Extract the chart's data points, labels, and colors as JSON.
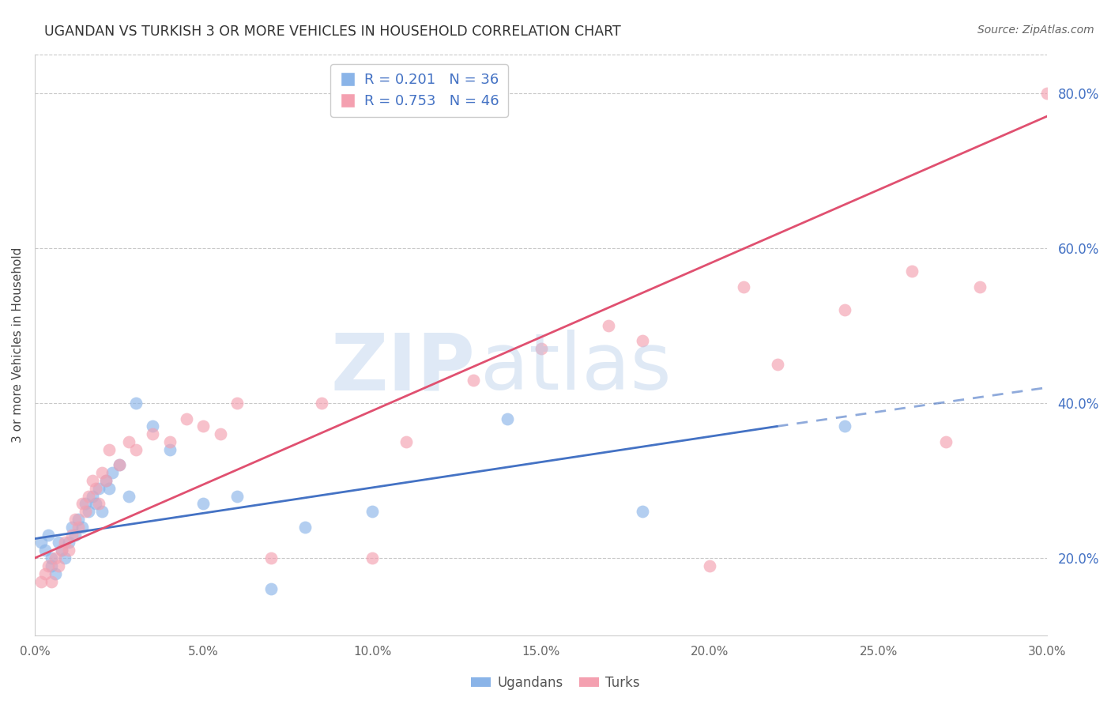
{
  "title": "UGANDAN VS TURKISH 3 OR MORE VEHICLES IN HOUSEHOLD CORRELATION CHART",
  "source": "Source: ZipAtlas.com",
  "ylabel": "3 or more Vehicles in Household",
  "xlim": [
    0.0,
    30.0
  ],
  "ylim": [
    10.0,
    85.0
  ],
  "x_ticks": [
    0.0,
    5.0,
    10.0,
    15.0,
    20.0,
    25.0,
    30.0
  ],
  "y_ticks_right": [
    20.0,
    40.0,
    60.0,
    80.0
  ],
  "ugandan_R": 0.201,
  "ugandan_N": 36,
  "turkish_R": 0.753,
  "turkish_N": 46,
  "ugandan_color": "#8ab4e8",
  "turkish_color": "#f4a0b0",
  "ugandan_line_color": "#4472c4",
  "turkish_line_color": "#e05070",
  "background_color": "#ffffff",
  "grid_color": "#c8c8c8",
  "ugandans_x": [
    0.2,
    0.3,
    0.4,
    0.5,
    0.5,
    0.6,
    0.7,
    0.8,
    0.9,
    1.0,
    1.1,
    1.2,
    1.3,
    1.4,
    1.5,
    1.6,
    1.7,
    1.8,
    1.9,
    2.0,
    2.1,
    2.2,
    2.3,
    2.5,
    2.8,
    3.0,
    3.5,
    4.0,
    5.0,
    6.0,
    7.0,
    8.0,
    10.0,
    14.0,
    18.0,
    24.0
  ],
  "ugandans_y": [
    22.0,
    21.0,
    23.0,
    20.0,
    19.0,
    18.0,
    22.0,
    21.0,
    20.0,
    22.0,
    24.0,
    23.0,
    25.0,
    24.0,
    27.0,
    26.0,
    28.0,
    27.0,
    29.0,
    26.0,
    30.0,
    29.0,
    31.0,
    32.0,
    28.0,
    40.0,
    37.0,
    34.0,
    27.0,
    28.0,
    16.0,
    24.0,
    26.0,
    38.0,
    26.0,
    37.0
  ],
  "turks_x": [
    0.2,
    0.3,
    0.4,
    0.5,
    0.6,
    0.7,
    0.8,
    0.9,
    1.0,
    1.1,
    1.2,
    1.3,
    1.4,
    1.5,
    1.6,
    1.7,
    1.8,
    1.9,
    2.0,
    2.1,
    2.2,
    2.5,
    2.8,
    3.0,
    3.5,
    4.0,
    4.5,
    5.0,
    5.5,
    6.0,
    7.0,
    8.5,
    10.0,
    11.0,
    13.0,
    15.0,
    17.0,
    18.0,
    20.0,
    21.0,
    22.0,
    24.0,
    26.0,
    27.0,
    28.0,
    30.0
  ],
  "turks_y": [
    17.0,
    18.0,
    19.0,
    17.0,
    20.0,
    19.0,
    21.0,
    22.0,
    21.0,
    23.0,
    25.0,
    24.0,
    27.0,
    26.0,
    28.0,
    30.0,
    29.0,
    27.0,
    31.0,
    30.0,
    34.0,
    32.0,
    35.0,
    34.0,
    36.0,
    35.0,
    38.0,
    37.0,
    36.0,
    40.0,
    20.0,
    40.0,
    20.0,
    35.0,
    43.0,
    47.0,
    50.0,
    48.0,
    19.0,
    55.0,
    45.0,
    52.0,
    57.0,
    35.0,
    55.0,
    80.0
  ],
  "ugandan_trend_x0": 0.0,
  "ugandan_trend_y0": 22.5,
  "ugandan_trend_x1": 22.0,
  "ugandan_trend_y1": 37.0,
  "ugandan_dash_x0": 22.0,
  "ugandan_dash_y0": 37.0,
  "ugandan_dash_x1": 30.0,
  "ugandan_dash_y1": 42.0,
  "turkish_trend_x0": 0.0,
  "turkish_trend_y0": 20.0,
  "turkish_trend_x1": 30.0,
  "turkish_trend_y1": 77.0
}
